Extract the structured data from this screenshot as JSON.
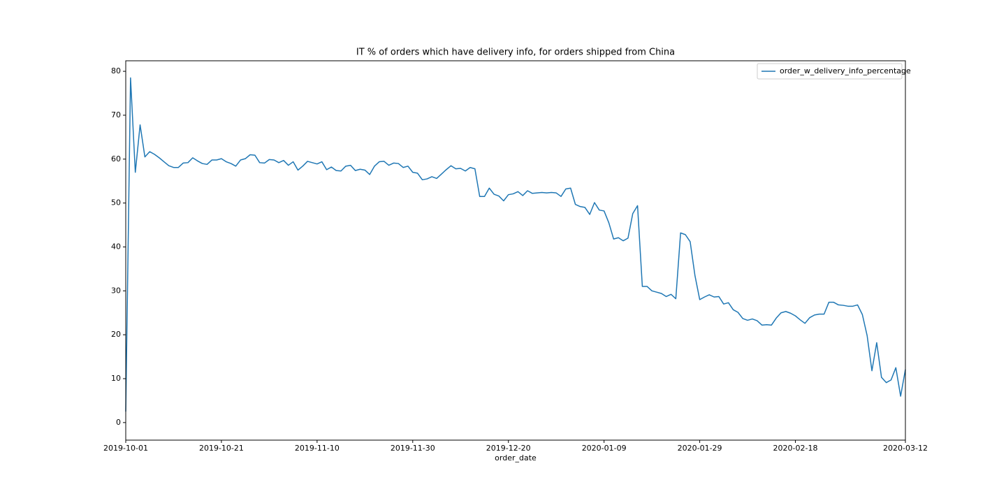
{
  "chart_data": {
    "type": "line",
    "title": "IT % of orders which have delivery info, for orders shipped from China",
    "x_label": "order_date",
    "x": [
      "2019-10-01",
      "2019-10-02",
      "2019-10-03",
      "2019-10-04",
      "2019-10-05",
      "2019-10-06",
      "2019-10-07",
      "2019-10-08",
      "2019-10-09",
      "2019-10-10",
      "2019-10-11",
      "2019-10-12",
      "2019-10-13",
      "2019-10-14",
      "2019-10-15",
      "2019-10-16",
      "2019-10-17",
      "2019-10-18",
      "2019-10-19",
      "2019-10-20",
      "2019-10-21",
      "2019-10-22",
      "2019-10-23",
      "2019-10-24",
      "2019-10-25",
      "2019-10-26",
      "2019-10-27",
      "2019-10-28",
      "2019-10-29",
      "2019-10-30",
      "2019-10-31",
      "2019-11-01",
      "2019-11-02",
      "2019-11-03",
      "2019-11-04",
      "2019-11-05",
      "2019-11-06",
      "2019-11-07",
      "2019-11-08",
      "2019-11-09",
      "2019-11-10",
      "2019-11-11",
      "2019-11-12",
      "2019-11-13",
      "2019-11-14",
      "2019-11-15",
      "2019-11-16",
      "2019-11-17",
      "2019-11-18",
      "2019-11-19",
      "2019-11-20",
      "2019-11-21",
      "2019-11-22",
      "2019-11-23",
      "2019-11-24",
      "2019-11-25",
      "2019-11-26",
      "2019-11-27",
      "2019-11-28",
      "2019-11-29",
      "2019-11-30",
      "2019-12-01",
      "2019-12-02",
      "2019-12-03",
      "2019-12-04",
      "2019-12-05",
      "2019-12-06",
      "2019-12-07",
      "2019-12-08",
      "2019-12-09",
      "2019-12-10",
      "2019-12-11",
      "2019-12-12",
      "2019-12-13",
      "2019-12-14",
      "2019-12-15",
      "2019-12-16",
      "2019-12-17",
      "2019-12-18",
      "2019-12-19",
      "2019-12-20",
      "2019-12-21",
      "2019-12-22",
      "2019-12-23",
      "2019-12-24",
      "2019-12-25",
      "2019-12-26",
      "2019-12-27",
      "2019-12-28",
      "2019-12-29",
      "2019-12-30",
      "2019-12-31",
      "2020-01-01",
      "2020-01-02",
      "2020-01-03",
      "2020-01-04",
      "2020-01-05",
      "2020-01-06",
      "2020-01-07",
      "2020-01-08",
      "2020-01-09",
      "2020-01-10",
      "2020-01-11",
      "2020-01-12",
      "2020-01-13",
      "2020-01-14",
      "2020-01-15",
      "2020-01-16",
      "2020-01-17",
      "2020-01-18",
      "2020-01-19",
      "2020-01-20",
      "2020-01-21",
      "2020-01-22",
      "2020-01-23",
      "2020-01-24",
      "2020-01-25",
      "2020-01-26",
      "2020-01-27",
      "2020-01-28",
      "2020-01-29",
      "2020-01-30",
      "2020-01-31",
      "2020-02-01",
      "2020-02-02",
      "2020-02-03",
      "2020-02-04",
      "2020-02-05",
      "2020-02-06",
      "2020-02-07",
      "2020-02-08",
      "2020-02-09",
      "2020-02-10",
      "2020-02-11",
      "2020-02-12",
      "2020-02-13",
      "2020-02-14",
      "2020-02-15",
      "2020-02-16",
      "2020-02-17",
      "2020-02-18",
      "2020-02-19",
      "2020-02-20",
      "2020-02-21",
      "2020-02-22",
      "2020-02-23",
      "2020-02-24",
      "2020-02-25",
      "2020-02-26",
      "2020-02-27",
      "2020-02-28",
      "2020-02-29",
      "2020-03-01",
      "2020-03-02",
      "2020-03-03",
      "2020-03-04",
      "2020-03-05",
      "2020-03-06",
      "2020-03-07",
      "2020-03-08",
      "2020-03-09",
      "2020-03-10",
      "2020-03-11",
      "2020-03-12"
    ],
    "series": [
      {
        "name": "order_w_delivery_info_percentage",
        "color": "#1f77b4",
        "values": [
          2.5,
          78.5,
          57,
          67.8,
          60.5,
          61.7,
          61.1,
          60.3,
          59.4,
          58.5,
          58.1,
          58.1,
          59.1,
          59.2,
          60.3,
          59.6,
          59.0,
          58.8,
          59.8,
          59.8,
          60.1,
          59.4,
          59.0,
          58.4,
          59.8,
          60.1,
          61.0,
          60.9,
          59.2,
          59.1,
          59.9,
          59.8,
          59.2,
          59.7,
          58.6,
          59.4,
          57.5,
          58.4,
          59.5,
          59.2,
          58.9,
          59.4,
          57.6,
          58.2,
          57.4,
          57.3,
          58.4,
          58.6,
          57.4,
          57.7,
          57.5,
          56.5,
          58.4,
          59.4,
          59.5,
          58.6,
          59.1,
          59.0,
          58.1,
          58.4,
          57.0,
          56.8,
          55.3,
          55.5,
          56.0,
          55.6,
          56.6,
          57.6,
          58.5,
          57.8,
          57.9,
          57.3,
          58.1,
          57.8,
          51.5,
          51.5,
          53.4,
          52.0,
          51.6,
          50.5,
          51.9,
          52.1,
          52.6,
          51.7,
          52.8,
          52.2,
          52.3,
          52.4,
          52.3,
          52.4,
          52.3,
          51.5,
          53.2,
          53.4,
          49.7,
          49.2,
          49.0,
          47.4,
          50.1,
          48.4,
          48.2,
          45.5,
          41.8,
          42.1,
          41.4,
          42.0,
          47.6,
          49.4,
          31.0,
          31.0,
          30.0,
          29.7,
          29.4,
          28.7,
          29.2,
          28.2,
          43.2,
          42.8,
          41.2,
          33.5,
          28.0,
          28.6,
          29.1,
          28.6,
          28.7,
          27.0,
          27.3,
          25.7,
          25.1,
          23.7,
          23.3,
          23.6,
          23.2,
          22.2,
          22.3,
          22.2,
          23.8,
          25.0,
          25.3,
          24.9,
          24.3,
          23.4,
          22.6,
          23.9,
          24.5,
          24.7,
          24.7,
          27.4,
          27.4,
          26.8,
          26.7,
          26.5,
          26.5,
          26.8,
          24.6,
          19.8,
          11.8,
          18.2,
          10.3,
          9.1,
          9.7,
          12.5,
          6.0,
          12.1
        ]
      }
    ],
    "xlim": [
      "2019-10-01",
      "2020-03-12"
    ],
    "xticks": [
      "2019-10-01",
      "2019-10-21",
      "2019-11-10",
      "2019-11-30",
      "2019-12-20",
      "2020-01-09",
      "2020-01-29",
      "2020-02-18",
      "2020-03-12"
    ],
    "ylim": [
      -4,
      82.4
    ],
    "yticks": [
      0,
      10,
      20,
      30,
      40,
      50,
      60,
      70,
      80
    ],
    "legend": "upper right"
  }
}
